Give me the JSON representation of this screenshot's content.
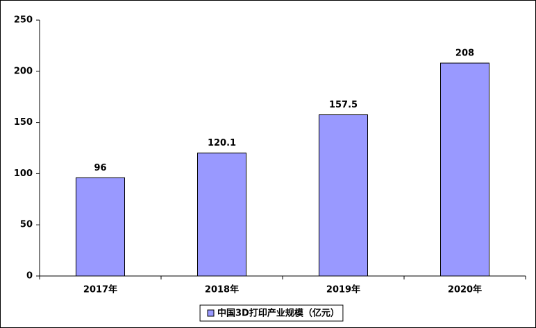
{
  "chart_data": {
    "type": "bar",
    "categories": [
      "2017年",
      "2018年",
      "2019年",
      "2020年"
    ],
    "series": [
      {
        "name": "中国3D打印产业规模（亿元）",
        "color": "#9999ff",
        "values": [
          96,
          120.1,
          157.5,
          208
        ]
      }
    ],
    "ylim": [
      0,
      250
    ],
    "yticks": [
      0,
      50,
      100,
      150,
      200,
      250
    ],
    "grid": false,
    "legend": "bottom"
  }
}
